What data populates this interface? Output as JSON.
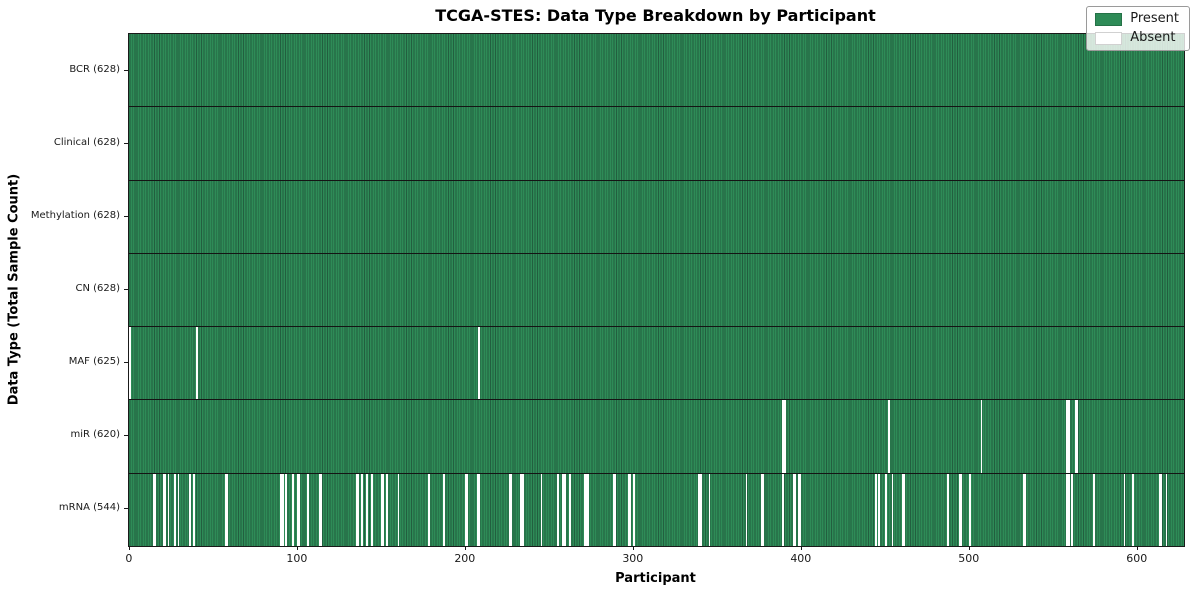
{
  "chart_data": {
    "type": "heatmap",
    "title": "TCGA-STES: Data Type Breakdown by Participant",
    "xlabel": "Participant",
    "ylabel": "Data Type (Total Sample Count)",
    "n_participants": 628,
    "xlim": [
      -0.5,
      627.5
    ],
    "x_ticks": [
      0,
      100,
      200,
      300,
      400,
      500,
      600
    ],
    "grid": "row-boundary-lines-only",
    "colors": {
      "present": "#2E8B57",
      "present_bar_edge": "#225f3f",
      "absent": "#ffffff",
      "axis_line": "#1a1a1a",
      "background": "#ffffff"
    },
    "legend": {
      "position": "upper right",
      "entries": [
        {
          "label": "Present",
          "color": "#2E8B57"
        },
        {
          "label": "Absent",
          "color": "#ffffff"
        }
      ]
    },
    "rows": [
      {
        "data_type": "BCR",
        "label": "BCR (628)",
        "present_count": 628,
        "absent_count": 0,
        "absent_indices": []
      },
      {
        "data_type": "Clinical",
        "label": "Clinical (628)",
        "present_count": 628,
        "absent_count": 0,
        "absent_indices": []
      },
      {
        "data_type": "Methylation",
        "label": "Methylation (628)",
        "present_count": 628,
        "absent_count": 0,
        "absent_indices": []
      },
      {
        "data_type": "CN",
        "label": "CN (628)",
        "present_count": 628,
        "absent_count": 0,
        "absent_indices": []
      },
      {
        "data_type": "MAF",
        "label": "MAF (625)",
        "present_count": 625,
        "absent_count": 3,
        "absent_indices": [
          0,
          40,
          208
        ]
      },
      {
        "data_type": "miR",
        "label": "miR (620)",
        "present_count": 620,
        "absent_count": 8,
        "absent_indices": [
          389,
          390,
          452,
          507,
          558,
          559,
          563,
          564
        ]
      },
      {
        "data_type": "mRNA",
        "label": "mRNA (544)",
        "present_count": 544,
        "absent_count": 84,
        "absent_indices": [
          14,
          15,
          20,
          21,
          23,
          27,
          29,
          36,
          38,
          57,
          58,
          90,
          91,
          93,
          97,
          100,
          101,
          106,
          113,
          114,
          135,
          136,
          138,
          141,
          144,
          150,
          151,
          153,
          160,
          178,
          187,
          200,
          201,
          207,
          208,
          226,
          227,
          233,
          234,
          245,
          255,
          258,
          259,
          262,
          271,
          272,
          273,
          288,
          289,
          297,
          298,
          300,
          339,
          340,
          345,
          367,
          376,
          377,
          389,
          395,
          396,
          398,
          399,
          444,
          446,
          450,
          454,
          460,
          461,
          487,
          494,
          495,
          500,
          532,
          533,
          558,
          559,
          561,
          574,
          592,
          597,
          613,
          614,
          617
        ]
      }
    ]
  }
}
